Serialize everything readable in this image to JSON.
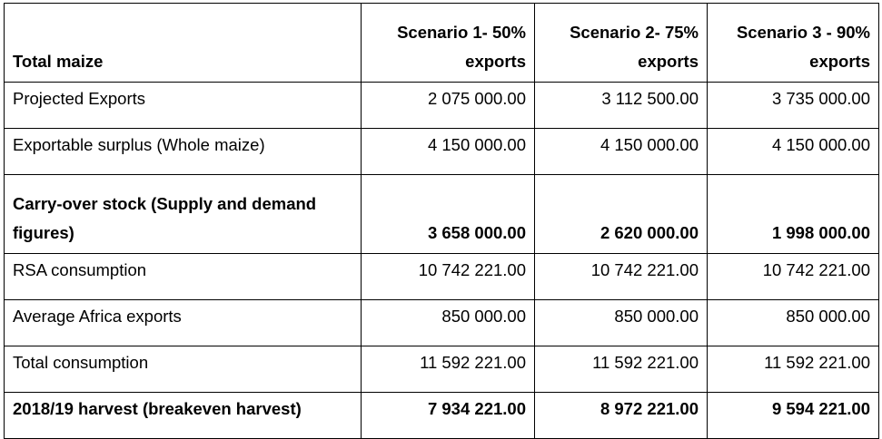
{
  "table": {
    "header": {
      "label": "Total maize",
      "scenarios": [
        "Scenario 1- 50% exports",
        "Scenario 2- 75% exports",
        "Scenario 3 - 90% exports"
      ]
    },
    "rows": [
      {
        "label": "Projected Exports",
        "values": [
          "2 075 000.00",
          "3 112 500.00",
          "3 735 000.00"
        ],
        "bold": false
      },
      {
        "label": "Exportable surplus (Whole maize)",
        "values": [
          "4 150 000.00",
          "4 150 000.00",
          "4 150 000.00"
        ],
        "bold": false
      },
      {
        "label": "Carry-over stock (Supply and demand figures)",
        "values": [
          "3 658 000.00",
          "2 620 000.00",
          "1 998 000.00"
        ],
        "bold": true
      },
      {
        "label": "RSA consumption",
        "values": [
          "10 742 221.00",
          "10 742 221.00",
          "10 742 221.00"
        ],
        "bold": false
      },
      {
        "label": "Average Africa exports",
        "values": [
          "850 000.00",
          "850 000.00",
          "850 000.00"
        ],
        "bold": false
      },
      {
        "label": "Total consumption",
        "values": [
          "11 592 221.00",
          "11 592 221.00",
          "11 592 221.00"
        ],
        "bold": false
      },
      {
        "label": "2018/19 harvest (breakeven harvest)",
        "values": [
          "7 934 221.00",
          "8 972 221.00",
          "9 594 221.00"
        ],
        "bold": true
      }
    ]
  }
}
